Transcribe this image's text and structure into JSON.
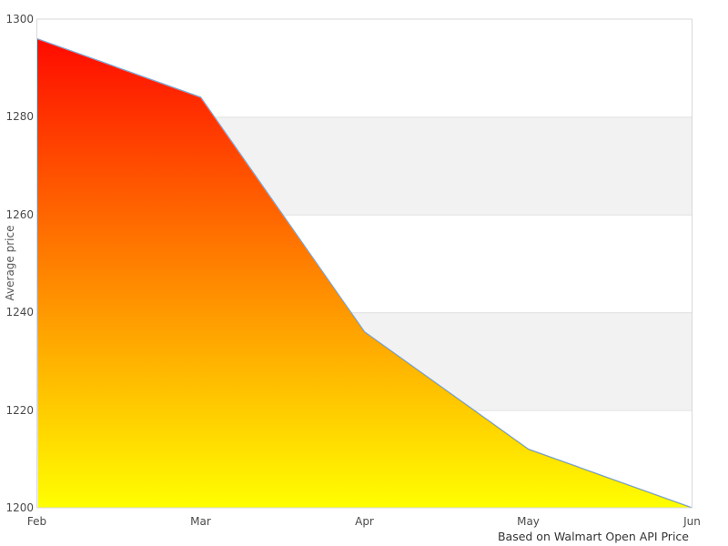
{
  "chart_data": {
    "type": "area",
    "x": [
      "Feb",
      "Mar",
      "Apr",
      "May",
      "Jun"
    ],
    "series": [
      {
        "name": "Average price",
        "values": [
          1296,
          1284,
          1236,
          1212,
          1200
        ]
      }
    ],
    "xlabel": "",
    "ylabel": "Average price",
    "ylim": [
      1200,
      1300
    ],
    "yticks": [
      1200,
      1220,
      1240,
      1260,
      1280,
      1300
    ],
    "grid": "horizontal-bands-alternating",
    "legend_position": "none",
    "caption": "Based on Walmart Open API Price",
    "colors": {
      "area_gradient_top": "#ff0000",
      "area_gradient_bottom": "#ffff00",
      "line": "#7fa1ca",
      "band_fill": "#f2f2f2",
      "gridline": "#e0e0e0",
      "plot_border": "#d9d9d9",
      "tick_text": "#4a4a4a",
      "axis_title_text": "#555555",
      "caption_text": "#333333",
      "background": "#ffffff"
    }
  }
}
